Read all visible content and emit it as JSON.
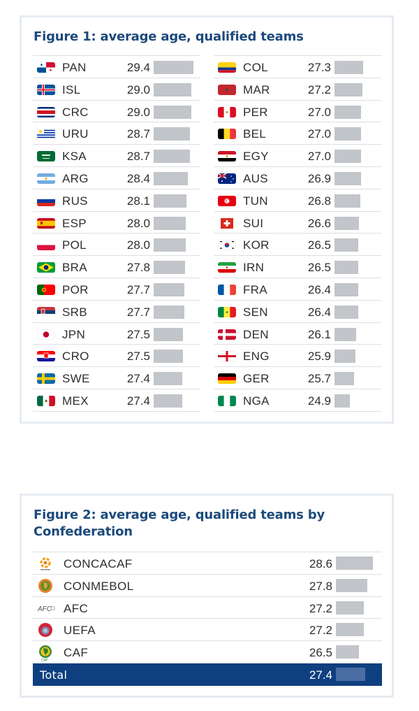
{
  "figure1": {
    "title": "Figure 1: average age, qualified teams",
    "left_column": [
      {
        "code": "PAN",
        "value": "29.4",
        "flag": "panama-flag"
      },
      {
        "code": "ISL",
        "value": "29.0",
        "flag": "iceland-flag"
      },
      {
        "code": "CRC",
        "value": "29.0",
        "flag": "costa-rica-flag"
      },
      {
        "code": "URU",
        "value": "28.7",
        "flag": "uruguay-flag"
      },
      {
        "code": "KSA",
        "value": "28.7",
        "flag": "saudi-arabia-flag"
      },
      {
        "code": "ARG",
        "value": "28.4",
        "flag": "argentina-flag"
      },
      {
        "code": "RUS",
        "value": "28.1",
        "flag": "russia-flag"
      },
      {
        "code": "ESP",
        "value": "28.0",
        "flag": "spain-flag"
      },
      {
        "code": "POL",
        "value": "28.0",
        "flag": "poland-flag"
      },
      {
        "code": "BRA",
        "value": "27.8",
        "flag": "brazil-flag"
      },
      {
        "code": "POR",
        "value": "27.7",
        "flag": "portugal-flag"
      },
      {
        "code": "SRB",
        "value": "27.7",
        "flag": "serbia-flag"
      },
      {
        "code": "JPN",
        "value": "27.5",
        "flag": "japan-flag"
      },
      {
        "code": "CRO",
        "value": "27.5",
        "flag": "croatia-flag"
      },
      {
        "code": "SWE",
        "value": "27.4",
        "flag": "sweden-flag"
      },
      {
        "code": "MEX",
        "value": "27.4",
        "flag": "mexico-flag"
      }
    ],
    "right_column": [
      {
        "code": "COL",
        "value": "27.3",
        "flag": "colombia-flag"
      },
      {
        "code": "MAR",
        "value": "27.2",
        "flag": "morocco-flag"
      },
      {
        "code": "PER",
        "value": "27.0",
        "flag": "peru-flag"
      },
      {
        "code": "BEL",
        "value": "27.0",
        "flag": "belgium-flag"
      },
      {
        "code": "EGY",
        "value": "27.0",
        "flag": "egypt-flag"
      },
      {
        "code": "AUS",
        "value": "26.9",
        "flag": "australia-flag"
      },
      {
        "code": "TUN",
        "value": "26.8",
        "flag": "tunisia-flag"
      },
      {
        "code": "SUI",
        "value": "26.6",
        "flag": "switzerland-flag"
      },
      {
        "code": "KOR",
        "value": "26.5",
        "flag": "south-korea-flag"
      },
      {
        "code": "IRN",
        "value": "26.5",
        "flag": "iran-flag"
      },
      {
        "code": "FRA",
        "value": "26.4",
        "flag": "france-flag"
      },
      {
        "code": "SEN",
        "value": "26.4",
        "flag": "senegal-flag"
      },
      {
        "code": "DEN",
        "value": "26.1",
        "flag": "denmark-flag"
      },
      {
        "code": "ENG",
        "value": "25.9",
        "flag": "england-flag"
      },
      {
        "code": "GER",
        "value": "25.7",
        "flag": "germany-flag"
      },
      {
        "code": "NGA",
        "value": "24.9",
        "flag": "nigeria-flag"
      }
    ]
  },
  "figure2": {
    "title": "Figure 2: average age, qualified teams by Confederation",
    "rows": [
      {
        "name": "CONCACAF",
        "value": "28.6",
        "logo": "concacaf-logo"
      },
      {
        "name": "CONMEBOL",
        "value": "27.8",
        "logo": "conmebol-logo"
      },
      {
        "name": "AFC",
        "value": "27.2",
        "logo": "afc-logo"
      },
      {
        "name": "UEFA",
        "value": "27.2",
        "logo": "uefa-logo"
      },
      {
        "name": "CAF",
        "value": "26.5",
        "logo": "caf-logo"
      }
    ],
    "total": {
      "name": "Total",
      "value": "27.4"
    }
  },
  "colors": {
    "title": "#1d4a7c",
    "bar": "#c2c5c9",
    "total_bg": "#0f3f7f",
    "total_bar": "#4a6ea4",
    "card_border": "#e6ebf1"
  },
  "chart_data": [
    {
      "type": "bar",
      "title": "Figure 1: average age, qualified teams",
      "orientation": "horizontal",
      "categories": [
        "PAN",
        "ISL",
        "CRC",
        "URU",
        "KSA",
        "ARG",
        "RUS",
        "ESP",
        "POL",
        "BRA",
        "POR",
        "SRB",
        "JPN",
        "CRO",
        "SWE",
        "MEX",
        "COL",
        "MAR",
        "PER",
        "BEL",
        "EGY",
        "AUS",
        "TUN",
        "SUI",
        "KOR",
        "IRN",
        "FRA",
        "SEN",
        "DEN",
        "ENG",
        "GER",
        "NGA"
      ],
      "values": [
        29.4,
        29.0,
        29.0,
        28.7,
        28.7,
        28.4,
        28.1,
        28.0,
        28.0,
        27.8,
        27.7,
        27.7,
        27.5,
        27.5,
        27.4,
        27.4,
        27.3,
        27.2,
        27.0,
        27.0,
        27.0,
        26.9,
        26.8,
        26.6,
        26.5,
        26.5,
        26.4,
        26.4,
        26.1,
        25.9,
        25.7,
        24.9
      ],
      "xlabel": "",
      "ylabel": "Average age",
      "grid": false,
      "legend": "none"
    },
    {
      "type": "bar",
      "title": "Figure 2: average age, qualified teams by Confederation",
      "orientation": "horizontal",
      "categories": [
        "CONCACAF",
        "CONMEBOL",
        "AFC",
        "UEFA",
        "CAF",
        "Total"
      ],
      "values": [
        28.6,
        27.8,
        27.2,
        27.2,
        26.5,
        27.4
      ],
      "xlabel": "",
      "ylabel": "Average age",
      "grid": false,
      "legend": "none"
    }
  ]
}
